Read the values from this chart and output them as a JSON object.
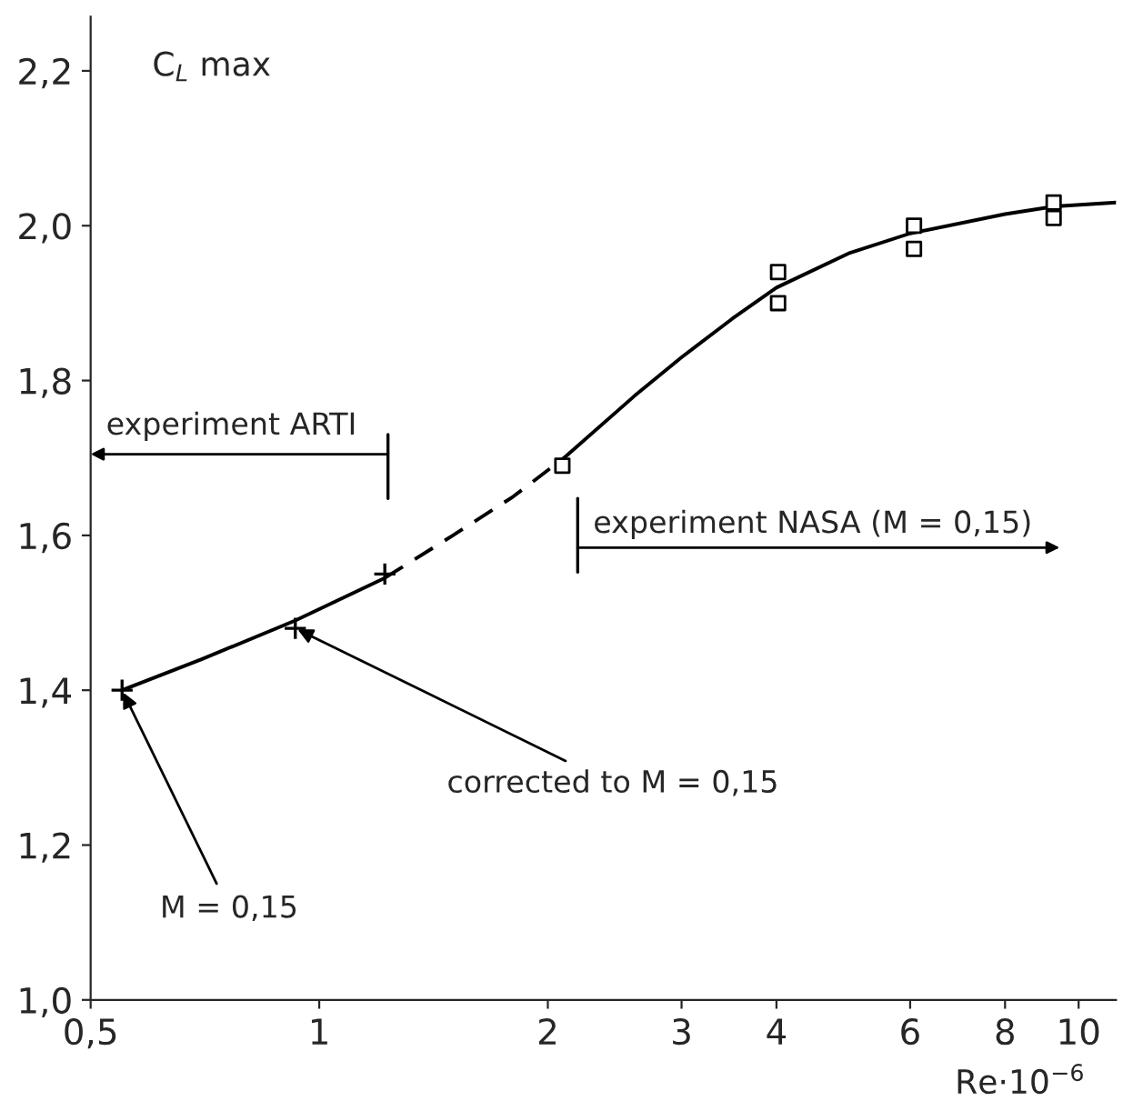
{
  "chart_data": {
    "type": "line",
    "xlabel": "Re·10$^{−6}$",
    "ylabel": "C$_{L}$ max",
    "log": "x",
    "grid": false,
    "xlim": [
      0.5,
      11.2
    ],
    "xticks": [
      {
        "value": 0.5,
        "label": "0,5"
      },
      1,
      2,
      3,
      4,
      6,
      8,
      10
    ],
    "ylim": [
      1.0,
      2.27
    ],
    "yticks": [
      {
        "value": 1.0,
        "label": "1,0"
      },
      {
        "value": 1.2,
        "label": "1,2"
      },
      {
        "value": 1.4,
        "label": "1,4"
      },
      {
        "value": 1.6,
        "label": "1,6"
      },
      {
        "value": 1.8,
        "label": "1,8"
      },
      {
        "value": 2.0,
        "label": "2,0"
      },
      {
        "value": 2.2,
        "label": "2,2"
      }
    ],
    "series": [
      {
        "color": "#000000",
        "line_style": "solid",
        "x": [
          0.55,
          0.7,
          0.93,
          1.22
        ],
        "values": [
          1.4,
          1.44,
          1.49,
          1.545
        ]
      },
      {
        "color": "#000000",
        "line_style": "dashed",
        "x": [
          1.22,
          1.5,
          1.8,
          2.1
        ],
        "values": [
          1.545,
          1.6,
          1.65,
          1.7
        ]
      },
      {
        "color": "#000000",
        "line_style": "solid",
        "x": [
          2.1,
          2.6,
          3,
          3.5,
          4,
          5,
          6,
          8,
          9.3,
          11.2
        ],
        "values": [
          1.7,
          1.78,
          1.83,
          1.88,
          1.92,
          1.965,
          1.99,
          2.015,
          2.025,
          2.03
        ]
      },
      {
        "type": "scatter",
        "color": "#000000",
        "marker": "cross",
        "x": [
          0.55,
          0.93,
          1.22
        ],
        "values": [
          1.4,
          1.48,
          1.55
        ]
      },
      {
        "type": "scatter",
        "color": "#000000",
        "marker": "square",
        "x": [
          2.09,
          4.02,
          4.02,
          6.07,
          6.07,
          9.27,
          9.27
        ],
        "values": [
          1.69,
          1.94,
          1.9,
          2.0,
          1.97,
          2.03,
          2.01
        ]
      }
    ],
    "annotations": [
      "experiment ARTI",
      "experiment NASA (M = 0,15)",
      {
        "text": "corrected to M = 0,15",
        "x": 0.93,
        "y": 1.48
      },
      {
        "text": "M = 0,15",
        "x": 0.55,
        "y": 1.4
      }
    ]
  }
}
